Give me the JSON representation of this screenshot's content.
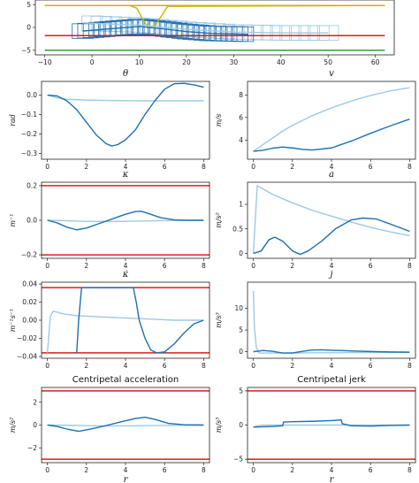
{
  "chart_data": [
    {
      "id": "top",
      "type": "line",
      "title": "",
      "xlabel": "",
      "ylabel": "",
      "xlim": [
        -12,
        64
      ],
      "ylim": [
        -6,
        6
      ],
      "xticks": [
        -10,
        0,
        10,
        20,
        30,
        40,
        50,
        60
      ],
      "yticks": [
        -5,
        0,
        5
      ],
      "colors": {
        "dark": "#1f6fb2",
        "light": "#9ccae6",
        "yellow": "#c8b400",
        "red": "#dd1c1c",
        "green": "#2ca02c"
      },
      "hlines": [
        {
          "y": 4.8,
          "color": "#c8b400",
          "xrange": [
            -10,
            62
          ]
        },
        {
          "y": -1.8,
          "color": "#dd1c1c",
          "xrange": [
            -10,
            62
          ]
        },
        {
          "y": -5.0,
          "color": "#2ca02c",
          "xrange": [
            -10,
            62
          ]
        }
      ],
      "series": [
        {
          "color": "#c8b400",
          "x": [
            -10,
            8,
            9.5,
            10.5,
            11.5,
            12.5,
            13.5,
            14.5,
            16,
            62
          ],
          "y": [
            4.8,
            4.8,
            4.2,
            2.2,
            0.6,
            0.2,
            0.6,
            2.2,
            4.6,
            4.8
          ]
        },
        {
          "color": "#9ccae6",
          "x": [
            -2,
            10,
            20,
            30,
            40,
            50
          ],
          "y": [
            1.0,
            0.5,
            -0.4,
            -1.0,
            -1.2,
            -1.2
          ]
        },
        {
          "color": "#1f6fb2",
          "x": [
            -2,
            5,
            10,
            15,
            20,
            25,
            33
          ],
          "y": [
            -0.8,
            -0.2,
            0.2,
            -0.3,
            -0.9,
            -1.3,
            -1.5
          ]
        }
      ],
      "rect_outlines": {
        "light": {
          "x_start": 0,
          "x_end": 50,
          "count": 26,
          "half_height": 1.6
        },
        "dark": {
          "x_start": -2,
          "x_end": 32,
          "count": 30,
          "half_height": 1.6
        }
      }
    },
    {
      "id": "theta",
      "type": "line",
      "title": "θ",
      "xlabel": "",
      "ylabel": "rad",
      "xlim": [
        -0.3,
        8.3
      ],
      "ylim": [
        -0.33,
        0.07
      ],
      "xticks": [
        0,
        2,
        4,
        6,
        8
      ],
      "yticks": [
        0.0,
        -0.1,
        -0.2,
        -0.3
      ],
      "ytick_labels": [
        "0.0",
        "−0.1",
        "−0.2",
        "−0.3"
      ],
      "series": [
        {
          "color": "#9ccae6",
          "x": [
            0,
            0.5,
            1,
            2,
            3,
            4,
            5,
            6,
            7,
            8
          ],
          "y": [
            0.0,
            -0.015,
            -0.022,
            -0.026,
            -0.028,
            -0.029,
            -0.03,
            -0.03,
            -0.03,
            -0.03
          ]
        },
        {
          "color": "#1f6fb2",
          "x": [
            0,
            0.5,
            1,
            1.5,
            2,
            2.5,
            3,
            3.3,
            3.6,
            4,
            4.5,
            5,
            5.5,
            6,
            6.5,
            7,
            7.5,
            8
          ],
          "y": [
            0.0,
            -0.005,
            -0.03,
            -0.075,
            -0.14,
            -0.205,
            -0.25,
            -0.262,
            -0.255,
            -0.23,
            -0.18,
            -0.1,
            -0.03,
            0.03,
            0.058,
            0.06,
            0.052,
            0.04
          ]
        }
      ]
    },
    {
      "id": "v",
      "type": "line",
      "title": "v",
      "xlabel": "",
      "ylabel": "m/s",
      "xlim": [
        -0.3,
        8.3
      ],
      "ylim": [
        2.3,
        9.2
      ],
      "xticks": [
        0,
        2,
        4,
        6,
        8
      ],
      "yticks": [
        4,
        6,
        8
      ],
      "series": [
        {
          "color": "#9ccae6",
          "x": [
            0,
            0.5,
            1,
            1.5,
            2,
            3,
            4,
            5,
            6,
            7,
            8
          ],
          "y": [
            3.0,
            3.6,
            4.2,
            4.8,
            5.3,
            6.15,
            6.85,
            7.45,
            7.95,
            8.35,
            8.65
          ]
        },
        {
          "color": "#1f6fb2",
          "x": [
            0,
            0.5,
            1,
            1.5,
            2,
            2.5,
            3,
            4,
            5,
            6,
            7,
            8
          ],
          "y": [
            3.0,
            3.1,
            3.28,
            3.38,
            3.3,
            3.18,
            3.12,
            3.3,
            3.9,
            4.6,
            5.25,
            5.85
          ]
        }
      ]
    },
    {
      "id": "kappa",
      "type": "line",
      "title": "κ",
      "xlabel": "",
      "ylabel": "m⁻¹",
      "xlim": [
        -0.3,
        8.3
      ],
      "ylim": [
        -0.22,
        0.22
      ],
      "xticks": [
        0,
        2,
        4,
        6,
        8
      ],
      "yticks": [
        0.2,
        0.0,
        -0.2
      ],
      "ytick_labels": [
        "0.2",
        "0.0",
        "−0.2"
      ],
      "hlines": [
        {
          "y": 0.2,
          "color": "#dd1c1c"
        },
        {
          "y": -0.2,
          "color": "#dd1c1c"
        }
      ],
      "series": [
        {
          "color": "#9ccae6",
          "x": [
            0,
            1,
            2,
            3,
            4,
            5,
            6,
            7,
            8
          ],
          "y": [
            0.0,
            -0.003,
            -0.006,
            -0.007,
            -0.006,
            -0.004,
            -0.002,
            -0.001,
            0.0
          ]
        },
        {
          "color": "#1f6fb2",
          "x": [
            0,
            0.5,
            1,
            1.5,
            2,
            2.5,
            3,
            3.5,
            4,
            4.5,
            4.8,
            5.2,
            5.8,
            6.5,
            7.2,
            8
          ],
          "y": [
            0.0,
            -0.015,
            -0.04,
            -0.055,
            -0.045,
            -0.025,
            -0.005,
            0.015,
            0.035,
            0.05,
            0.052,
            0.038,
            0.015,
            0.002,
            0.0,
            0.0
          ]
        }
      ]
    },
    {
      "id": "a",
      "type": "line",
      "title": "a",
      "xlabel": "",
      "ylabel": "m/s²",
      "xlim": [
        -0.3,
        8.3
      ],
      "ylim": [
        -0.1,
        1.45
      ],
      "xticks": [
        0,
        2,
        4,
        6,
        8
      ],
      "yticks": [
        0.0,
        0.5,
        1.0
      ],
      "series": [
        {
          "color": "#9ccae6",
          "x": [
            0,
            0.1,
            0.2,
            1,
            2,
            3,
            4,
            5,
            6,
            7,
            8
          ],
          "y": [
            0.0,
            0.7,
            1.38,
            1.2,
            1.03,
            0.88,
            0.76,
            0.64,
            0.53,
            0.44,
            0.36
          ]
        },
        {
          "color": "#1f6fb2",
          "x": [
            0,
            0.4,
            0.8,
            1.1,
            1.5,
            2,
            2.4,
            2.8,
            3.5,
            4.2,
            5,
            5.6,
            6.3,
            7,
            8
          ],
          "y": [
            0.0,
            0.05,
            0.28,
            0.33,
            0.25,
            0.05,
            -0.02,
            0.05,
            0.25,
            0.5,
            0.68,
            0.72,
            0.7,
            0.6,
            0.45
          ]
        }
      ]
    },
    {
      "id": "kappa_dot",
      "type": "line",
      "title": "κ̇",
      "xlabel": "",
      "ylabel": "m⁻¹s⁻¹",
      "xlim": [
        -0.3,
        8.3
      ],
      "ylim": [
        -0.042,
        0.042
      ],
      "xticks": [
        0,
        2,
        4,
        6,
        8
      ],
      "yticks": [
        0.04,
        0.02,
        0.0,
        -0.02,
        -0.04
      ],
      "ytick_labels": [
        "0.04",
        "0.02",
        "0.00",
        "−0.02",
        "−0.04"
      ],
      "hlines": [
        {
          "y": 0.036,
          "color": "#dd1c1c"
        },
        {
          "y": -0.036,
          "color": "#dd1c1c"
        }
      ],
      "series": [
        {
          "color": "#9ccae6",
          "x": [
            0,
            0.15,
            0.3,
            0.8,
            1.5,
            2.5,
            3.5,
            4.5,
            5.5,
            6.5,
            7.5,
            8
          ],
          "y": [
            -0.036,
            0.004,
            0.01,
            0.007,
            0.005,
            0.004,
            0.003,
            0.002,
            0.001,
            0.0,
            0.0,
            0.0
          ]
        },
        {
          "color": "#1f6fb2",
          "x": [
            1.5,
            1.6,
            1.75,
            4.4,
            4.55,
            4.7,
            5.0,
            5.3,
            5.6,
            6.0,
            6.5,
            7.0,
            7.5,
            8.0
          ],
          "y": [
            -0.036,
            0.0,
            0.036,
            0.036,
            0.02,
            0.0,
            -0.02,
            -0.033,
            -0.036,
            -0.035,
            -0.026,
            -0.014,
            -0.004,
            0.0
          ]
        }
      ]
    },
    {
      "id": "j",
      "type": "line",
      "title": "j",
      "xlabel": "",
      "ylabel": "m/s³",
      "xlim": [
        -0.3,
        8.3
      ],
      "ylim": [
        -1.5,
        16
      ],
      "xticks": [
        0,
        2,
        4,
        6,
        8
      ],
      "yticks": [
        0,
        5,
        10
      ],
      "series": [
        {
          "color": "#9ccae6",
          "x": [
            0,
            0.05,
            0.15,
            0.3,
            0.6,
            1,
            1.5,
            2,
            3,
            4,
            5,
            6,
            7,
            8
          ],
          "y": [
            14.0,
            6.0,
            1.0,
            -0.3,
            -0.3,
            -0.3,
            -0.3,
            -0.28,
            -0.25,
            -0.22,
            -0.2,
            -0.18,
            -0.15,
            -0.13
          ]
        },
        {
          "color": "#1f6fb2",
          "x": [
            0,
            0.5,
            1,
            1.5,
            2,
            2.5,
            3,
            3.5,
            4,
            5,
            6,
            7,
            8
          ],
          "y": [
            0.0,
            0.3,
            0.1,
            -0.3,
            -0.3,
            0.1,
            0.4,
            0.45,
            0.35,
            0.2,
            0.05,
            -0.05,
            -0.1
          ]
        }
      ]
    },
    {
      "id": "centripetal_acceleration",
      "type": "line",
      "title": "Centripetal acceleration",
      "xlabel": "r",
      "ylabel": "m/s²",
      "xlim": [
        -0.3,
        8.3
      ],
      "ylim": [
        -3.3,
        3.3
      ],
      "xticks": [
        0,
        2,
        4,
        6,
        8
      ],
      "yticks": [
        2,
        0,
        -2
      ],
      "ytick_labels": [
        "2",
        "0",
        "−2"
      ],
      "hlines": [
        {
          "y": 3.0,
          "color": "#dd1c1c"
        },
        {
          "y": -3.0,
          "color": "#dd1c1c"
        }
      ],
      "series": [
        {
          "color": "#9ccae6",
          "x": [
            0,
            1,
            2,
            3,
            4,
            5,
            6,
            7,
            8
          ],
          "y": [
            0.0,
            -0.02,
            -0.05,
            -0.07,
            -0.07,
            -0.05,
            -0.03,
            -0.01,
            0.0
          ]
        },
        {
          "color": "#1f6fb2",
          "x": [
            0,
            0.5,
            1,
            1.6,
            2.2,
            3,
            3.8,
            4.5,
            5.0,
            5.5,
            6.2,
            7,
            8
          ],
          "y": [
            0.0,
            -0.12,
            -0.35,
            -0.55,
            -0.35,
            -0.05,
            0.3,
            0.58,
            0.68,
            0.5,
            0.15,
            0.02,
            0.0
          ]
        }
      ]
    },
    {
      "id": "centripetal_jerk",
      "type": "line",
      "title": "Centripetal jerk",
      "xlabel": "r",
      "ylabel": "m/s³",
      "xlim": [
        -0.3,
        8.3
      ],
      "ylim": [
        -5.5,
        5.5
      ],
      "xticks": [
        0,
        2,
        4,
        6,
        8
      ],
      "yticks": [
        5,
        0,
        -5
      ],
      "ytick_labels": [
        "5",
        "0",
        "−5"
      ],
      "hlines": [
        {
          "y": 5.0,
          "color": "#dd1c1c"
        },
        {
          "y": -5.0,
          "color": "#dd1c1c"
        }
      ],
      "series": [
        {
          "color": "#9ccae6",
          "x": [
            0,
            0.2,
            0.5,
            1,
            2,
            3,
            4,
            5,
            6,
            7,
            8
          ],
          "y": [
            -0.3,
            -0.1,
            0.0,
            0.0,
            0.0,
            0.0,
            0.0,
            0.0,
            0.0,
            0.0,
            0.0
          ]
        },
        {
          "color": "#1f6fb2",
          "x": [
            0,
            0.5,
            1.0,
            1.5,
            1.55,
            2,
            3,
            4,
            4.5,
            4.55,
            5,
            6,
            7,
            8
          ],
          "y": [
            -0.3,
            -0.25,
            -0.2,
            -0.1,
            0.45,
            0.5,
            0.55,
            0.65,
            0.75,
            0.2,
            -0.1,
            -0.15,
            -0.05,
            0.0
          ]
        }
      ]
    }
  ]
}
